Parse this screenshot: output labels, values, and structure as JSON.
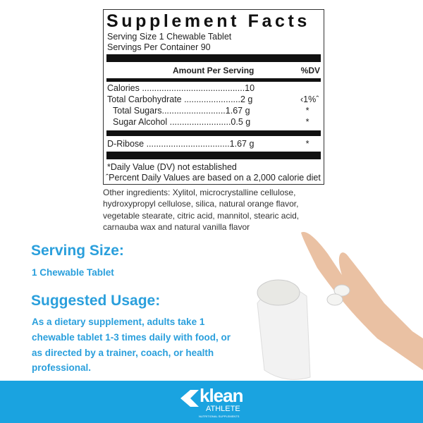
{
  "facts": {
    "title": "Supplement Facts",
    "serving_size": "Serving Size 1 Chewable Tablet",
    "servings_per_container": "Servings Per Container 90",
    "amount_header": "Amount Per Serving",
    "dv_header": "%DV",
    "rows": [
      {
        "label": "Calories ..........................................10",
        "dv": ""
      },
      {
        "label": "Total Carbohydrate .......................2 g",
        "dv": "‹1%ˆ"
      },
      {
        "label": "Total Sugars..........................1.67 g",
        "dv": "*"
      },
      {
        "label": "Sugar Alcohol .........................0.5 g",
        "dv": "*"
      },
      {
        "label": "D-Ribose ..................................1.67 g",
        "dv": "*"
      }
    ],
    "footnote1": "*Daily Value (DV) not established",
    "footnote2": "ˆPercent Daily Values are based on a 2,000 calorie diet"
  },
  "other_ingredients": "Other ingredients: Xylitol, microcrystalline cellulose, hydroxypropyl cellulose, silica, natural orange flavor, vegetable stearate, citric acid, mannitol, stearic acid, carnauba wax and natural vanilla flavor",
  "serving": {
    "heading": "Serving Size:",
    "text": "1 Chewable Tablet"
  },
  "usage": {
    "heading": "Suggested Usage:",
    "text": "As a dietary supplement, adults take 1 chewable tablet 1-3 times daily with food, or as directed by a trainer, coach, or health professional."
  },
  "brand": {
    "name": "klean",
    "sub": "ATHLETE",
    "tagline": "NUTRITIONAL SUPPLEMENTS",
    "color": "#1aa3e0"
  },
  "colors": {
    "accent": "#2a9fdc"
  }
}
